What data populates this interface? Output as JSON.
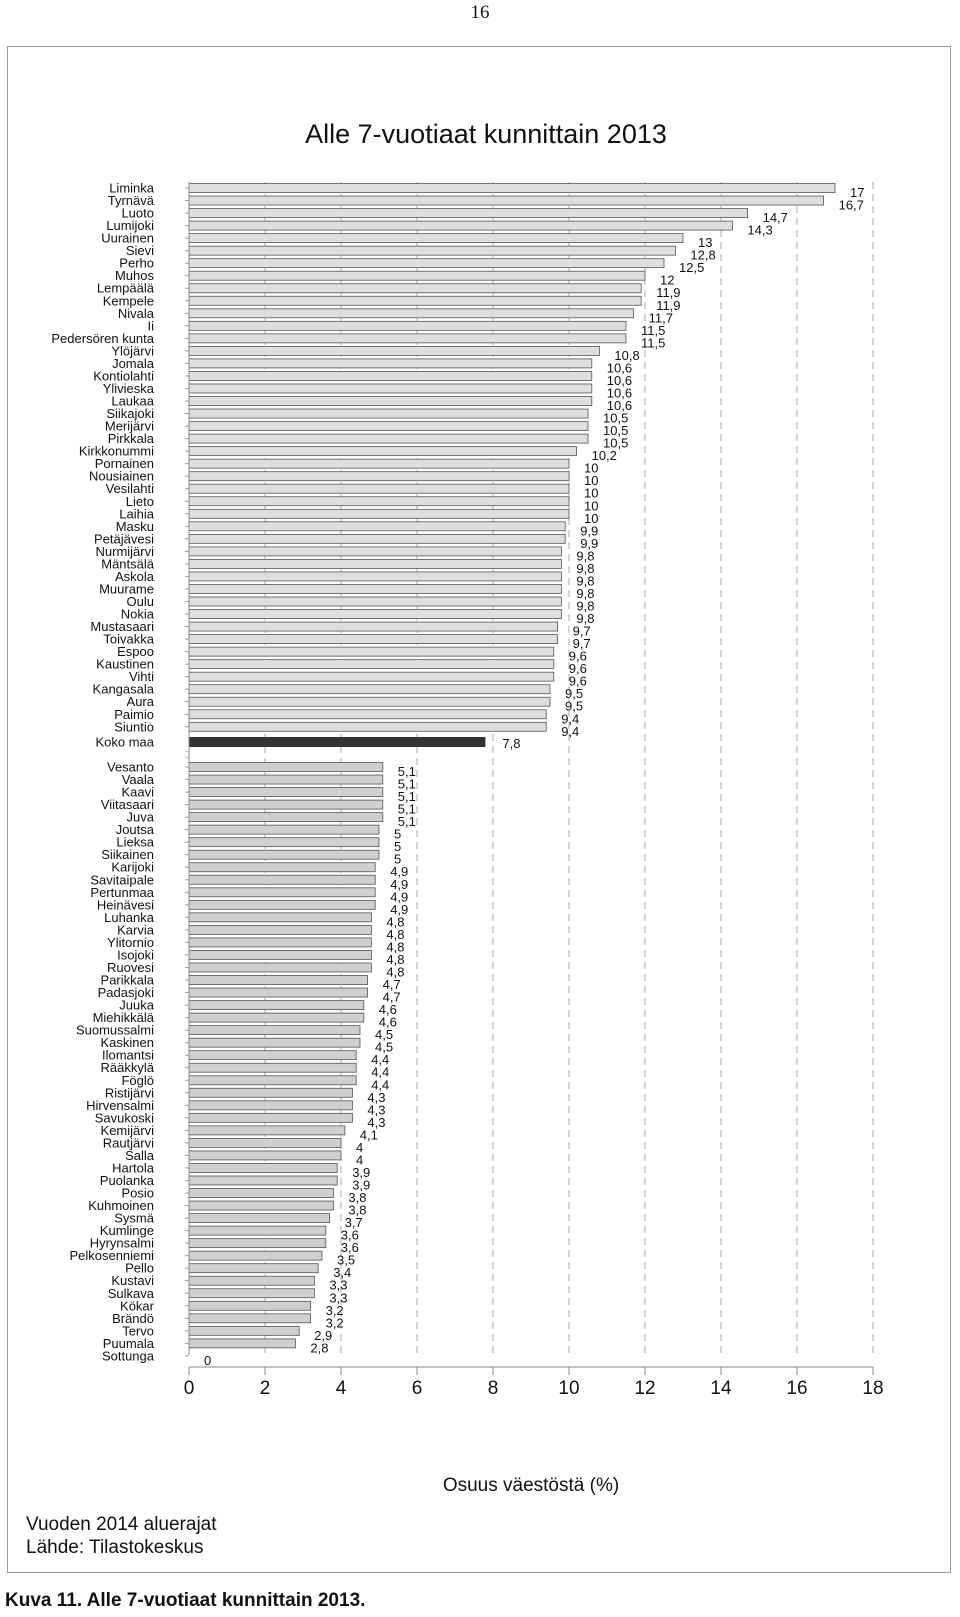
{
  "page": {
    "number": "16"
  },
  "chart_data": {
    "type": "bar",
    "orientation": "horizontal",
    "title": "Alle 7-vuotiaat kunnittain 2013",
    "xlabel": "Osuus väestöstä (%)",
    "ylabel": "",
    "xlim": [
      0,
      18
    ],
    "xticks": [
      "0",
      "2",
      "4",
      "6",
      "8",
      "10",
      "12",
      "14",
      "16",
      "18"
    ],
    "grid": "vertical dashed",
    "top_group": {
      "categories": [
        "Liminka",
        "Tyrnävä",
        "Luoto",
        "Lumijoki",
        "Uurainen",
        "Sievi",
        "Perho",
        "Muhos",
        "Lempäälä",
        "Kempele",
        "Nivala",
        "Ii",
        "Pedersören kunta",
        "Ylöjärvi",
        "Jomala",
        "Kontiolahti",
        "Ylivieska",
        "Laukaa",
        "Siikajoki",
        "Merijärvi",
        "Pirkkala",
        "Kirkkonummi",
        "Pornainen",
        "Nousiainen",
        "Vesilahti",
        "Lieto",
        "Laihia",
        "Masku",
        "Petäjävesi",
        "Nurmijärvi",
        "Mäntsälä",
        "Askola",
        "Muurame",
        "Oulu",
        "Nokia",
        "Mustasaari",
        "Toivakka",
        "Espoo",
        "Kaustinen",
        "Vihti",
        "Kangasala",
        "Aura",
        "Paimio",
        "Siuntio"
      ],
      "values": [
        17,
        16.7,
        14.7,
        14.3,
        13,
        12.8,
        12.5,
        12,
        11.9,
        11.9,
        11.7,
        11.5,
        11.5,
        10.8,
        10.6,
        10.6,
        10.6,
        10.6,
        10.5,
        10.5,
        10.5,
        10.2,
        10,
        10,
        10,
        10,
        10,
        9.9,
        9.9,
        9.8,
        9.8,
        9.8,
        9.8,
        9.8,
        9.8,
        9.7,
        9.7,
        9.6,
        9.6,
        9.6,
        9.5,
        9.5,
        9.4,
        9.4
      ],
      "labels": [
        "17",
        "16,7",
        "14,7",
        "14,3",
        "13",
        "12,8",
        "12,5",
        "12",
        "11,9",
        "11,9",
        "11,7",
        "11,5",
        "11,5",
        "10,8",
        "10,6",
        "10,6",
        "10,6",
        "10,6",
        "10,5",
        "10,5",
        "10,5",
        "10,2",
        "10",
        "10",
        "10",
        "10",
        "10",
        "9,9",
        "9,9",
        "9,8",
        "9,8",
        "9,8",
        "9,8",
        "9,8",
        "9,8",
        "9,7",
        "9,7",
        "9,6",
        "9,6",
        "9,6",
        "9,5",
        "9,5",
        "9,4",
        "9,4"
      ],
      "color": "#dedede"
    },
    "reference": {
      "category": "Koko maa",
      "value": 7.8,
      "label": "7,8",
      "color": "#333333"
    },
    "bottom_group": {
      "categories": [
        "Vesanto",
        "Vaala",
        "Kaavi",
        "Viitasaari",
        "Juva",
        "Joutsa",
        "Lieksa",
        "Siikainen",
        "Karijoki",
        "Savitaipale",
        "Pertunmaa",
        "Heinävesi",
        "Luhanka",
        "Karvia",
        "Ylitornio",
        "Isojoki",
        "Ruovesi",
        "Parikkala",
        "Padasjoki",
        "Juuka",
        "Miehikkälä",
        "Suomussalmi",
        "Kaskinen",
        "Ilomantsi",
        "Rääkkylä",
        "Föglö",
        "Ristijärvi",
        "Hirvensalmi",
        "Savukoski",
        "Kemijärvi",
        "Rautjärvi",
        "Salla",
        "Hartola",
        "Puolanka",
        "Posio",
        "Kuhmoinen",
        "Sysmä",
        "Kumlinge",
        "Hyrynsalmi",
        "Pelkosenniemi",
        "Pello",
        "Kustavi",
        "Sulkava",
        "Kökar",
        "Brändö",
        "Tervo",
        "Puumala",
        "Sottunga"
      ],
      "values": [
        5.1,
        5.1,
        5.1,
        5.1,
        5.1,
        5,
        5,
        5,
        4.9,
        4.9,
        4.9,
        4.9,
        4.8,
        4.8,
        4.8,
        4.8,
        4.8,
        4.7,
        4.7,
        4.6,
        4.6,
        4.5,
        4.5,
        4.4,
        4.4,
        4.4,
        4.3,
        4.3,
        4.3,
        4.1,
        4,
        4,
        3.9,
        3.9,
        3.8,
        3.8,
        3.7,
        3.6,
        3.6,
        3.5,
        3.4,
        3.3,
        3.3,
        3.2,
        3.2,
        2.9,
        2.8,
        0
      ],
      "labels": [
        "5,1",
        "5,1",
        "5,1",
        "5,1",
        "5,1",
        "5",
        "5",
        "5",
        "4,9",
        "4,9",
        "4,9",
        "4,9",
        "4,8",
        "4,8",
        "4,8",
        "4,8",
        "4,8",
        "4,7",
        "4,7",
        "4,6",
        "4,6",
        "4,5",
        "4,5",
        "4,4",
        "4,4",
        "4,4",
        "4,3",
        "4,3",
        "4,3",
        "4,1",
        "4",
        "4",
        "3,9",
        "3,9",
        "3,8",
        "3,8",
        "3,7",
        "3,6",
        "3,6",
        "3,5",
        "3,4",
        "3,3",
        "3,3",
        "3,2",
        "3,2",
        "2,9",
        "2,8",
        "0"
      ],
      "color": "#cfcfcf"
    },
    "colors": {
      "grid": "#a8a8a8",
      "bar_edge": "#555555"
    }
  },
  "footer": {
    "line1": "Vuoden 2014 aluerajat",
    "line2": "Lähde: Tilastokeskus"
  },
  "caption": "Kuva 11. Alle 7-vuotiaat kunnittain 2013."
}
